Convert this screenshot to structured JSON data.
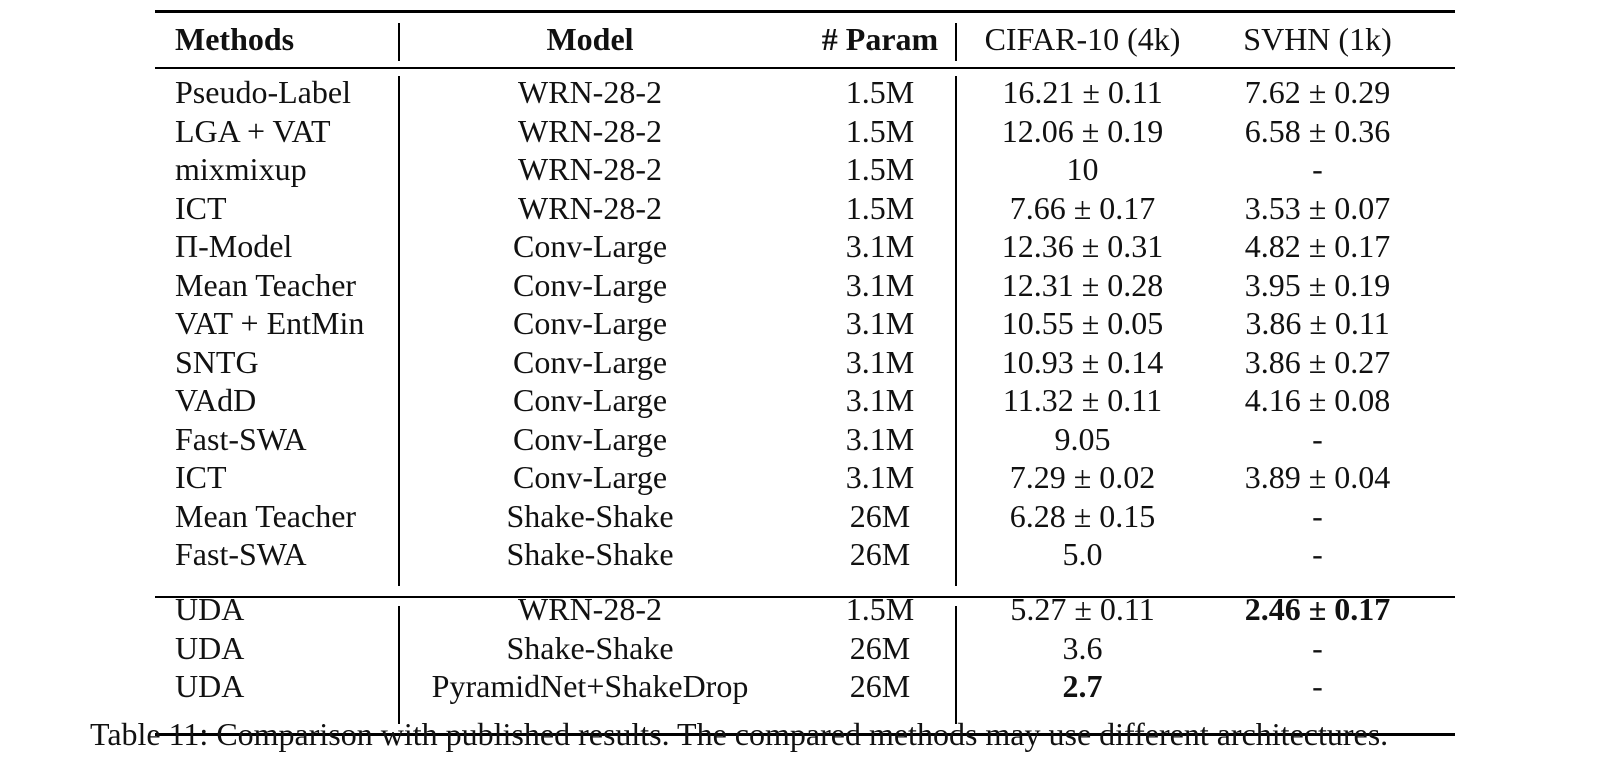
{
  "table": {
    "headers": {
      "method": "Methods",
      "model": "Model",
      "param": "# Param",
      "cifar": "CIFAR-10 (4k)",
      "svhn": "SVHN (1k)"
    },
    "rows": [
      {
        "method": "Pseudo-Label",
        "model": "WRN-28-2",
        "param": "1.5M",
        "cifar": "16.21 ± 0.11",
        "svhn": "7.62 ± 0.29"
      },
      {
        "method": "LGA + VAT",
        "model": "WRN-28-2",
        "param": "1.5M",
        "cifar": "12.06 ± 0.19",
        "svhn": "6.58 ± 0.36"
      },
      {
        "method": "mixmixup",
        "model": "WRN-28-2",
        "param": "1.5M",
        "cifar": "10",
        "svhn": "-"
      },
      {
        "method": "ICT",
        "model": "WRN-28-2",
        "param": "1.5M",
        "cifar": "7.66 ± 0.17",
        "svhn": "3.53 ± 0.07"
      },
      {
        "method": "Π-Model",
        "model": "Conv-Large",
        "param": "3.1M",
        "cifar": "12.36 ± 0.31",
        "svhn": "4.82 ± 0.17"
      },
      {
        "method": "Mean Teacher",
        "model": "Conv-Large",
        "param": "3.1M",
        "cifar": "12.31 ± 0.28",
        "svhn": "3.95 ± 0.19"
      },
      {
        "method": "VAT + EntMin",
        "model": "Conv-Large",
        "param": "3.1M",
        "cifar": "10.55 ± 0.05",
        "svhn": "3.86 ± 0.11"
      },
      {
        "method": "SNTG",
        "model": "Conv-Large",
        "param": "3.1M",
        "cifar": "10.93 ± 0.14",
        "svhn": "3.86 ± 0.27"
      },
      {
        "method": "VAdD",
        "model": "Conv-Large",
        "param": "3.1M",
        "cifar": "11.32 ± 0.11",
        "svhn": "4.16 ± 0.08"
      },
      {
        "method": "Fast-SWA",
        "model": "Conv-Large",
        "param": "3.1M",
        "cifar": "9.05",
        "svhn": "-"
      },
      {
        "method": "ICT",
        "model": "Conv-Large",
        "param": "3.1M",
        "cifar": "7.29 ± 0.02",
        "svhn": "3.89 ± 0.04"
      },
      {
        "method": "Mean Teacher",
        "model": "Shake-Shake",
        "param": "26M",
        "cifar": "6.28 ± 0.15",
        "svhn": "-"
      },
      {
        "method": "Fast-SWA",
        "model": "Shake-Shake",
        "param": "26M",
        "cifar": "5.0",
        "svhn": "-"
      }
    ],
    "uda_rows": [
      {
        "method": "UDA",
        "model": "WRN-28-2",
        "param": "1.5M",
        "cifar": "5.27 ± 0.11",
        "svhn": "2.46 ± 0.17",
        "svhn_bold": true
      },
      {
        "method": "UDA",
        "model": "Shake-Shake",
        "param": "26M",
        "cifar": "3.6",
        "svhn": "-"
      },
      {
        "method": "UDA",
        "model": "PyramidNet+ShakeDrop",
        "param": "26M",
        "cifar": "2.7",
        "svhn": "-",
        "cifar_bold": true
      }
    ]
  },
  "caption": "Table 11: Comparison with published results. The compared methods may use different architectures."
}
